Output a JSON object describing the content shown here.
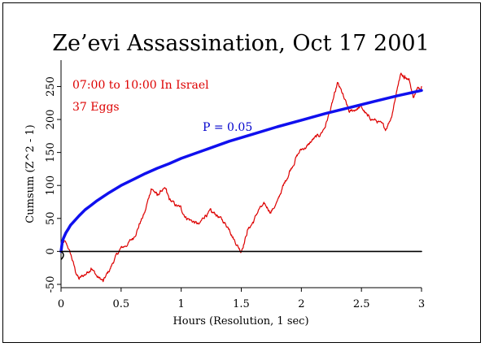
{
  "chart_data": {
    "type": "line",
    "title": "Ze’evi Assassination, Oct 17 2001",
    "xlabel": "Hours (Resolution, 1 sec)",
    "ylabel": "Cumsum (Z^2 - 1)",
    "xlim": [
      0,
      3
    ],
    "ylim": [
      -55,
      290
    ],
    "xticks": [
      0,
      0.5,
      1,
      1.5,
      2,
      2.5,
      3
    ],
    "xtick_labels": [
      "0",
      "0.5",
      "1",
      "1.5",
      "2",
      "2.5",
      "3"
    ],
    "yticks": [
      -50,
      0,
      50,
      100,
      150,
      200,
      250
    ],
    "ytick_labels": [
      "-50",
      "0",
      "50",
      "100",
      "150",
      "200",
      "250"
    ],
    "annotations": [
      {
        "text": "07:00 to 10:00 In Israel",
        "color": "#dd0000"
      },
      {
        "text": "37 Eggs",
        "color": "#dd0000"
      },
      {
        "text": "P = 0.05",
        "color": "#0000cc"
      }
    ],
    "series": [
      {
        "color": "#dd0000",
        "x": [
          0,
          0.03,
          0.06,
          0.09,
          0.12,
          0.15,
          0.2,
          0.25,
          0.3,
          0.35,
          0.4,
          0.45,
          0.5,
          0.55,
          0.6,
          0.65,
          0.7,
          0.72,
          0.75,
          0.78,
          0.8,
          0.85,
          0.88,
          0.9,
          0.95,
          1.0,
          1.05,
          1.1,
          1.15,
          1.2,
          1.25,
          1.3,
          1.35,
          1.4,
          1.45,
          1.5,
          1.55,
          1.6,
          1.65,
          1.7,
          1.75,
          1.8,
          1.85,
          1.9,
          1.95,
          2.0,
          2.05,
          2.1,
          2.15,
          2.2,
          2.25,
          2.28,
          2.3,
          2.35,
          2.4,
          2.45,
          2.5,
          2.55,
          2.6,
          2.65,
          2.7,
          2.75,
          2.8,
          2.83,
          2.86,
          2.9,
          2.93,
          2.96,
          3.0
        ],
        "y": [
          5,
          15,
          5,
          -10,
          -30,
          -42,
          -35,
          -25,
          -38,
          -45,
          -30,
          -10,
          5,
          10,
          20,
          40,
          60,
          75,
          95,
          90,
          85,
          95,
          90,
          80,
          70,
          65,
          50,
          45,
          40,
          55,
          60,
          55,
          45,
          35,
          15,
          0,
          30,
          45,
          65,
          70,
          60,
          75,
          100,
          120,
          140,
          155,
          160,
          170,
          175,
          190,
          220,
          240,
          255,
          235,
          210,
          215,
          220,
          205,
          200,
          195,
          185,
          205,
          250,
          270,
          265,
          260,
          235,
          245,
          250
        ]
      },
      {
        "color": "#1010ee",
        "x": [
          0,
          0.01,
          0.02,
          0.04,
          0.06,
          0.08,
          0.1,
          0.15,
          0.2,
          0.25,
          0.3,
          0.4,
          0.5,
          0.6,
          0.7,
          0.8,
          0.9,
          1.0,
          1.2,
          1.4,
          1.6,
          1.8,
          2.0,
          2.2,
          2.4,
          2.6,
          2.8,
          3.0
        ],
        "y": [
          0,
          14,
          20,
          28,
          34,
          40,
          44,
          54,
          63,
          70,
          77,
          89,
          100,
          109,
          118,
          126,
          133,
          141,
          154,
          167,
          178,
          189,
          199,
          209,
          218,
          227,
          236,
          244
        ]
      },
      {
        "color": "#000000",
        "x": [
          0,
          3
        ],
        "y": [
          0,
          0
        ]
      }
    ]
  }
}
